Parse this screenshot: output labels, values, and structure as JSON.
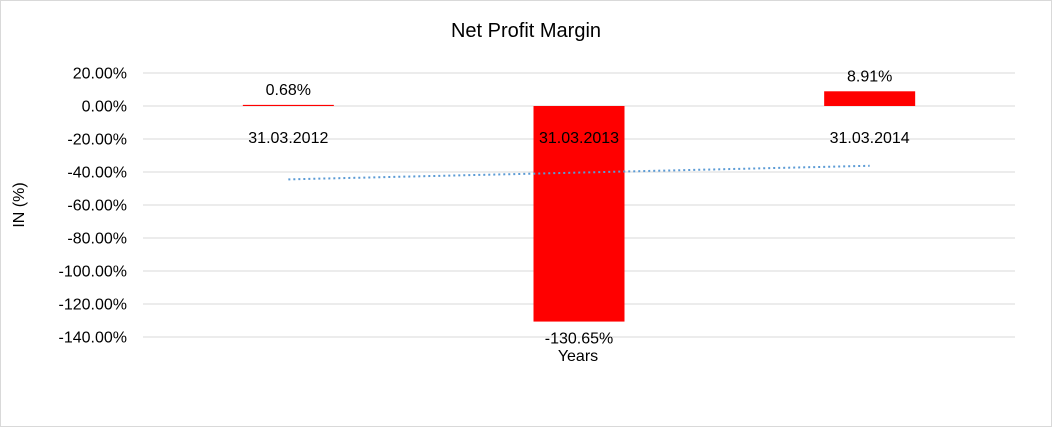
{
  "chart_data": {
    "type": "bar",
    "title": "Net Profit Margin",
    "xlabel": "Years",
    "ylabel": "IN (%)",
    "categories": [
      "31.03.2012",
      "31.03.2013",
      "31.03.2014"
    ],
    "values": [
      0.68,
      -130.65,
      8.91
    ],
    "data_labels": [
      "0.68%",
      "-130.65%",
      "8.91%"
    ],
    "ylim": [
      -140,
      20
    ],
    "yticks": [
      20,
      0,
      -20,
      -40,
      -60,
      -80,
      -100,
      -120,
      -140
    ],
    "ytick_labels": [
      "20.00%",
      "0.00%",
      "-20.00%",
      "-40.00%",
      "-60.00%",
      "-80.00%",
      "-100.00%",
      "-120.00%",
      "-140.00%"
    ],
    "grid": true,
    "legend": "none",
    "trendline": {
      "type": "linear",
      "style": "dotted"
    },
    "colors": {
      "bar": "#ff0000",
      "trendline": "#5b9bd5",
      "grid": "#d9d9d9"
    }
  }
}
